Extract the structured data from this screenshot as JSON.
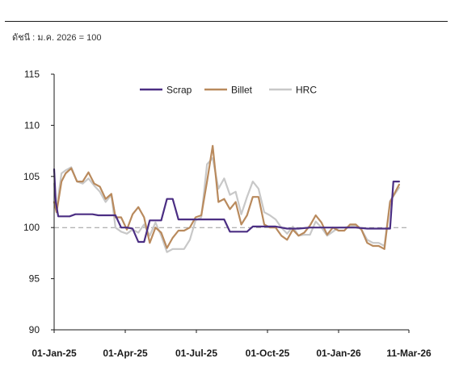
{
  "header": {
    "index_note": "ดัชนี : ม.ค. 2026 = 100"
  },
  "chart_data": {
    "type": "line",
    "title": "",
    "xlabel": "",
    "ylabel": "",
    "ylim": [
      90,
      115
    ],
    "yticks": [
      90,
      95,
      100,
      105,
      110,
      115
    ],
    "x_ticks": [
      "01-Jan-25",
      "01-Apr-25",
      "01-Jul-25",
      "01-Oct-25",
      "01-Jan-26",
      "11-Mar-26"
    ],
    "reference_line": 100,
    "grid": false,
    "legend_position": "top-center",
    "x_start": "2025-01-01",
    "x_end": "2026-03-11",
    "series": [
      {
        "name": "Scrap",
        "color": "#4b2e83",
        "points": [
          [
            "2025-01-01",
            105.7
          ],
          [
            "2025-01-03",
            102.5
          ],
          [
            "2025-01-06",
            101.1
          ],
          [
            "2025-01-13",
            101.1
          ],
          [
            "2025-01-20",
            101.1
          ],
          [
            "2025-01-27",
            101.3
          ],
          [
            "2025-02-03",
            101.3
          ],
          [
            "2025-02-17",
            101.3
          ],
          [
            "2025-02-24",
            101.2
          ],
          [
            "2025-03-10",
            101.2
          ],
          [
            "2025-03-17",
            101.2
          ],
          [
            "2025-03-24",
            100.0
          ],
          [
            "2025-03-31",
            100.0
          ],
          [
            "2025-04-07",
            99.9
          ],
          [
            "2025-04-14",
            98.6
          ],
          [
            "2025-04-21",
            98.6
          ],
          [
            "2025-04-28",
            100.7
          ],
          [
            "2025-05-05",
            100.7
          ],
          [
            "2025-05-12",
            100.7
          ],
          [
            "2025-05-19",
            102.8
          ],
          [
            "2025-05-26",
            102.8
          ],
          [
            "2025-06-02",
            100.8
          ],
          [
            "2025-06-16",
            100.8
          ],
          [
            "2025-06-30",
            100.8
          ],
          [
            "2025-07-14",
            100.8
          ],
          [
            "2025-07-28",
            100.8
          ],
          [
            "2025-08-04",
            99.6
          ],
          [
            "2025-08-18",
            99.6
          ],
          [
            "2025-08-25",
            99.6
          ],
          [
            "2025-09-01",
            100.1
          ],
          [
            "2025-09-15",
            100.1
          ],
          [
            "2025-09-29",
            100.1
          ],
          [
            "2025-10-13",
            99.9
          ],
          [
            "2025-10-27",
            99.9
          ],
          [
            "2025-11-10",
            100.0
          ],
          [
            "2025-11-24",
            100.0
          ],
          [
            "2025-12-08",
            100.0
          ],
          [
            "2025-12-22",
            100.0
          ],
          [
            "2026-01-05",
            100.0
          ],
          [
            "2026-01-19",
            99.9
          ],
          [
            "2026-02-02",
            99.9
          ],
          [
            "2026-02-09",
            99.9
          ],
          [
            "2026-02-16",
            99.9
          ],
          [
            "2026-02-20",
            104.5
          ],
          [
            "2026-02-27",
            104.5
          ]
        ]
      },
      {
        "name": "Billet",
        "color": "#b98a5d",
        "points": [
          [
            "2025-01-01",
            102.5
          ],
          [
            "2025-01-04",
            101.5
          ],
          [
            "2025-01-10",
            104.5
          ],
          [
            "2025-01-15",
            105.3
          ],
          [
            "2025-01-22",
            105.8
          ],
          [
            "2025-01-29",
            104.5
          ],
          [
            "2025-02-05",
            104.5
          ],
          [
            "2025-02-12",
            105.4
          ],
          [
            "2025-02-19",
            104.3
          ],
          [
            "2025-02-26",
            104.0
          ],
          [
            "2025-03-05",
            102.8
          ],
          [
            "2025-03-12",
            103.3
          ],
          [
            "2025-03-17",
            101.0
          ],
          [
            "2025-03-24",
            101.0
          ],
          [
            "2025-03-31",
            99.8
          ],
          [
            "2025-04-07",
            101.3
          ],
          [
            "2025-04-14",
            102.0
          ],
          [
            "2025-04-21",
            101.0
          ],
          [
            "2025-04-28",
            98.5
          ],
          [
            "2025-05-05",
            100.0
          ],
          [
            "2025-05-12",
            99.5
          ],
          [
            "2025-05-19",
            98.0
          ],
          [
            "2025-05-26",
            99.0
          ],
          [
            "2025-06-02",
            99.7
          ],
          [
            "2025-06-09",
            99.7
          ],
          [
            "2025-06-16",
            100.0
          ],
          [
            "2025-06-23",
            101.0
          ],
          [
            "2025-06-30",
            101.2
          ],
          [
            "2025-07-07",
            104.5
          ],
          [
            "2025-07-14",
            108.0
          ],
          [
            "2025-07-21",
            102.5
          ],
          [
            "2025-07-28",
            102.8
          ],
          [
            "2025-08-04",
            101.8
          ],
          [
            "2025-08-11",
            102.5
          ],
          [
            "2025-08-18",
            100.3
          ],
          [
            "2025-08-25",
            101.2
          ],
          [
            "2025-09-01",
            103.0
          ],
          [
            "2025-09-08",
            103.0
          ],
          [
            "2025-09-15",
            100.3
          ],
          [
            "2025-09-22",
            100.0
          ],
          [
            "2025-09-29",
            100.0
          ],
          [
            "2025-10-06",
            99.2
          ],
          [
            "2025-10-13",
            98.8
          ],
          [
            "2025-10-20",
            99.8
          ],
          [
            "2025-10-27",
            99.2
          ],
          [
            "2025-11-03",
            99.5
          ],
          [
            "2025-11-10",
            100.2
          ],
          [
            "2025-11-17",
            101.2
          ],
          [
            "2025-11-24",
            100.5
          ],
          [
            "2025-12-01",
            99.3
          ],
          [
            "2025-12-08",
            100.0
          ],
          [
            "2025-12-15",
            99.7
          ],
          [
            "2025-12-22",
            99.7
          ],
          [
            "2025-12-29",
            100.3
          ],
          [
            "2026-01-05",
            100.3
          ],
          [
            "2026-01-12",
            99.8
          ],
          [
            "2026-01-19",
            98.5
          ],
          [
            "2026-01-26",
            98.2
          ],
          [
            "2026-02-02",
            98.2
          ],
          [
            "2026-02-09",
            97.9
          ],
          [
            "2026-02-16",
            102.5
          ],
          [
            "2026-02-27",
            104.2
          ]
        ]
      },
      {
        "name": "HRC",
        "color": "#c8c8c8",
        "points": [
          [
            "2025-01-01",
            104.3
          ],
          [
            "2025-01-04",
            101.8
          ],
          [
            "2025-01-10",
            105.3
          ],
          [
            "2025-01-15",
            105.6
          ],
          [
            "2025-01-22",
            105.9
          ],
          [
            "2025-01-29",
            104.5
          ],
          [
            "2025-02-05",
            104.3
          ],
          [
            "2025-02-12",
            104.8
          ],
          [
            "2025-02-19",
            104.1
          ],
          [
            "2025-02-26",
            103.5
          ],
          [
            "2025-03-05",
            102.5
          ],
          [
            "2025-03-12",
            103.2
          ],
          [
            "2025-03-17",
            100.0
          ],
          [
            "2025-03-24",
            99.6
          ],
          [
            "2025-03-31",
            99.4
          ],
          [
            "2025-04-07",
            99.8
          ],
          [
            "2025-04-14",
            99.5
          ],
          [
            "2025-04-21",
            100.3
          ],
          [
            "2025-04-28",
            99.2
          ],
          [
            "2025-05-05",
            100.5
          ],
          [
            "2025-05-12",
            99.2
          ],
          [
            "2025-05-19",
            97.6
          ],
          [
            "2025-05-26",
            97.9
          ],
          [
            "2025-06-02",
            97.9
          ],
          [
            "2025-06-09",
            97.9
          ],
          [
            "2025-06-16",
            98.8
          ],
          [
            "2025-06-23",
            100.7
          ],
          [
            "2025-06-30",
            101.0
          ],
          [
            "2025-07-07",
            106.2
          ],
          [
            "2025-07-14",
            106.8
          ],
          [
            "2025-07-21",
            103.8
          ],
          [
            "2025-07-28",
            104.8
          ],
          [
            "2025-08-04",
            103.2
          ],
          [
            "2025-08-11",
            103.5
          ],
          [
            "2025-08-18",
            101.3
          ],
          [
            "2025-08-25",
            103.0
          ],
          [
            "2025-09-01",
            104.5
          ],
          [
            "2025-09-08",
            103.8
          ],
          [
            "2025-09-15",
            101.5
          ],
          [
            "2025-09-22",
            101.2
          ],
          [
            "2025-09-29",
            100.8
          ],
          [
            "2025-10-06",
            100.0
          ],
          [
            "2025-10-13",
            99.4
          ],
          [
            "2025-10-20",
            100.1
          ],
          [
            "2025-10-27",
            99.2
          ],
          [
            "2025-11-03",
            99.3
          ],
          [
            "2025-11-10",
            99.3
          ],
          [
            "2025-11-17",
            100.6
          ],
          [
            "2025-11-24",
            100.0
          ],
          [
            "2025-12-01",
            99.2
          ],
          [
            "2025-12-08",
            99.6
          ],
          [
            "2025-12-15",
            100.0
          ],
          [
            "2025-12-22",
            100.0
          ],
          [
            "2025-12-29",
            100.1
          ],
          [
            "2026-01-05",
            100.2
          ],
          [
            "2026-01-12",
            99.8
          ],
          [
            "2026-01-19",
            98.8
          ],
          [
            "2026-01-26",
            98.5
          ],
          [
            "2026-02-02",
            98.5
          ],
          [
            "2026-02-09",
            98.2
          ],
          [
            "2026-02-16",
            102.6
          ],
          [
            "2026-02-27",
            103.9
          ]
        ]
      }
    ]
  }
}
